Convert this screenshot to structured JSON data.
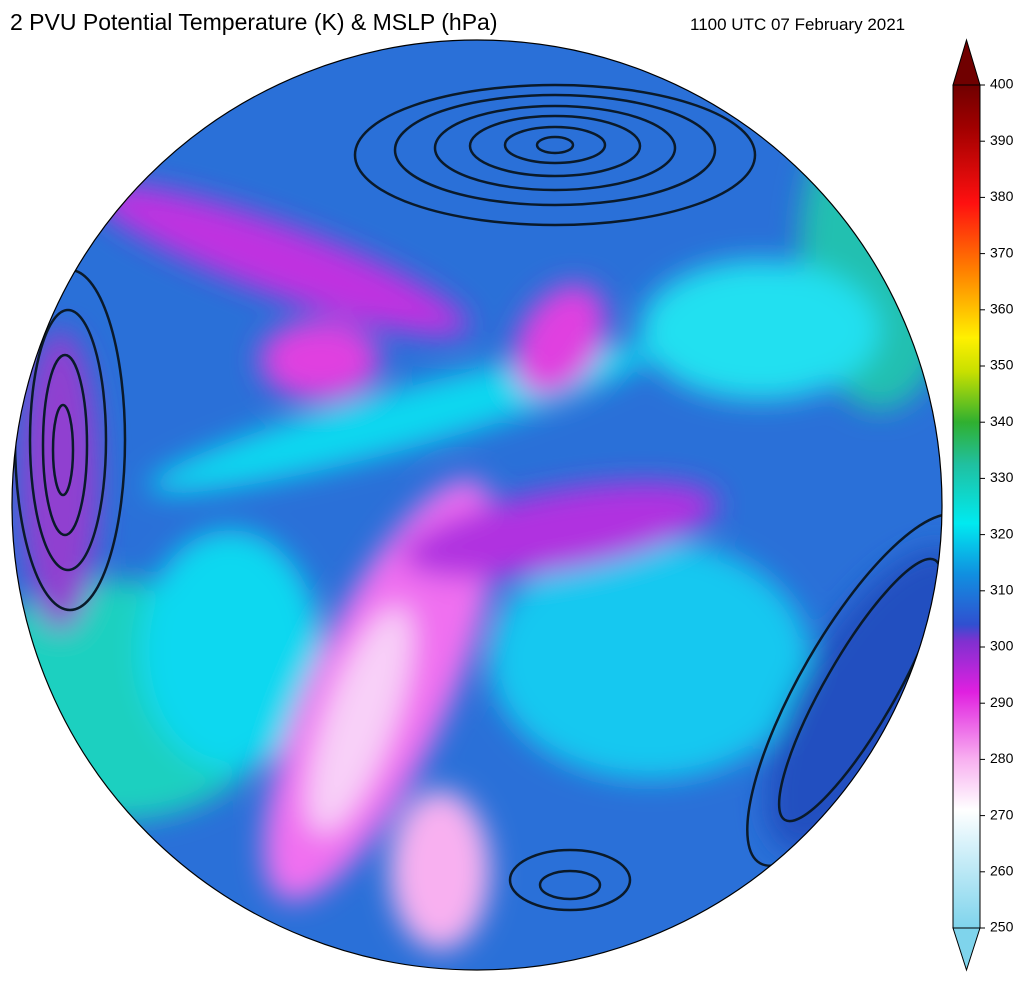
{
  "title": "2 PVU Potential Temperature (K) & MSLP (hPa)",
  "timestamp": "1100 UTC 07 February 2021",
  "colorbar": {
    "lim": [
      250,
      400
    ],
    "ticks": [
      250,
      260,
      270,
      280,
      290,
      300,
      310,
      320,
      330,
      340,
      350,
      360,
      370,
      380,
      390,
      400
    ]
  }
}
